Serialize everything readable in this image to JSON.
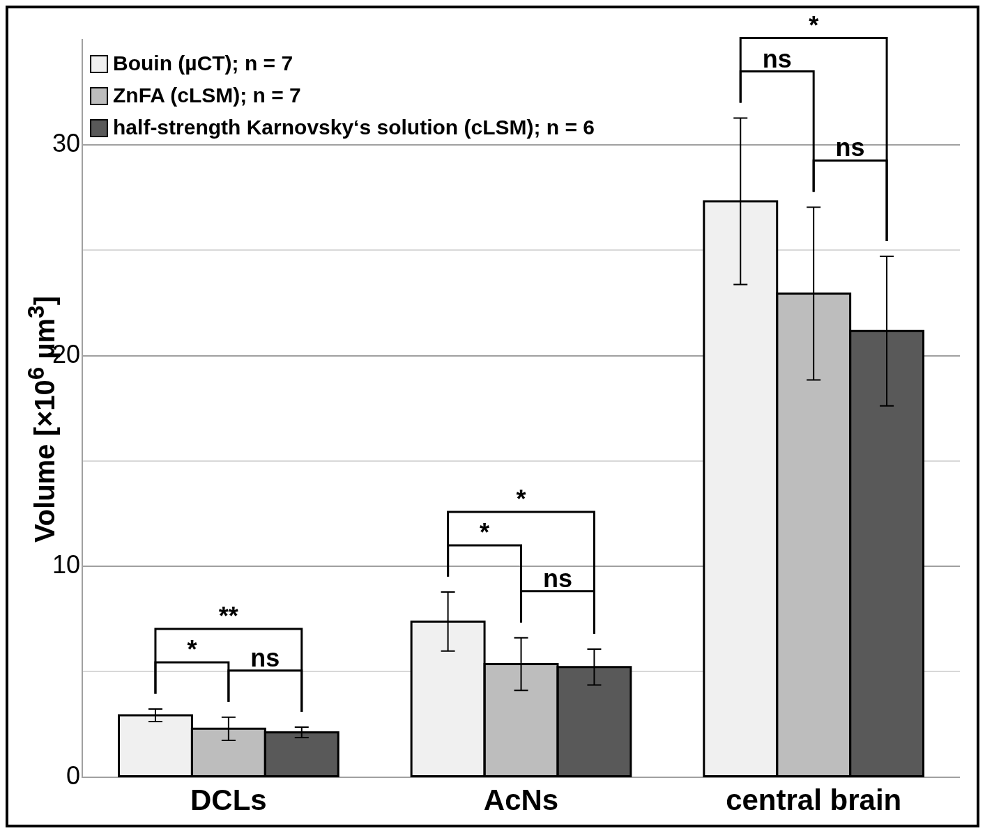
{
  "chart_data": {
    "type": "bar",
    "ylabel": "Volume [×10$^{6}$ µm$^{3}$]",
    "categories": [
      "DCLs",
      "AcNs",
      "central brain"
    ],
    "series": [
      {
        "name": "Bouin (µCT); n = 7",
        "color": "#f0f0f0",
        "values": [
          2.93,
          7.38,
          27.33
        ],
        "errors": [
          0.3,
          1.4,
          3.95
        ]
      },
      {
        "name": "ZnFA (cLSM); n = 7",
        "color": "#bdbdbd",
        "values": [
          2.29,
          5.36,
          22.95
        ],
        "errors": [
          0.55,
          1.25,
          4.1
        ]
      },
      {
        "name": "half-strength Karnovsky‘s solution (cLSM); n = 6",
        "color": "#595959",
        "values": [
          2.12,
          5.22,
          21.17
        ],
        "errors": [
          0.25,
          0.85,
          3.55
        ]
      }
    ],
    "ylim": [
      0,
      35
    ],
    "yticks": [
      0,
      {
        "value": 5,
        "label": null
      },
      10,
      {
        "value": 15,
        "label": null
      },
      20,
      {
        "value": 25,
        "label": null
      },
      30
    ],
    "grid": "y",
    "legend": "top left",
    "annotations": [
      "*",
      "ns",
      "**",
      "*",
      "ns",
      "*",
      "ns",
      "ns",
      "*"
    ]
  }
}
